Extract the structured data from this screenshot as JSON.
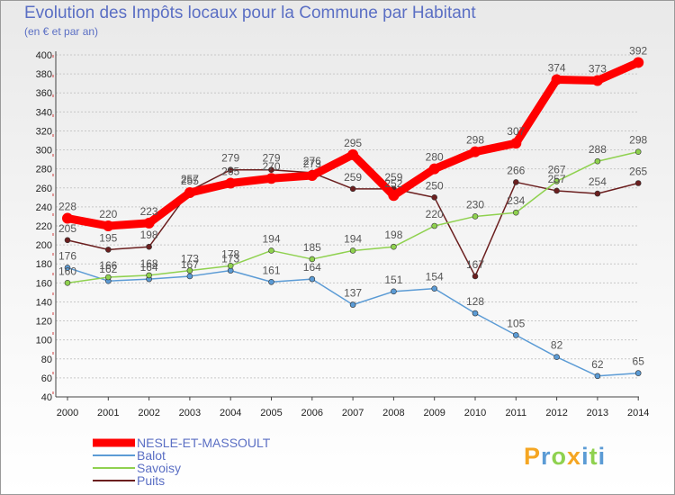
{
  "chart_data": {
    "type": "line",
    "title": "Evolution des Impôts locaux pour la Commune par Habitant",
    "subtitle": "(en € et par an)",
    "x": [
      "2000",
      "2001",
      "2002",
      "2003",
      "2004",
      "2005",
      "2006",
      "2007",
      "2008",
      "2009",
      "2010",
      "2011",
      "2012",
      "2013",
      "2014"
    ],
    "ylim": [
      40,
      400
    ],
    "yticks": [
      40,
      60,
      80,
      100,
      120,
      140,
      160,
      180,
      200,
      220,
      240,
      260,
      280,
      300,
      320,
      340,
      360,
      380,
      400
    ],
    "grid": "horizontal dashed",
    "legend": "bottom-left",
    "series": [
      {
        "name": "NESLE-ET-MASSOULT",
        "color": "#ff0000",
        "values": [
          228,
          220,
          223,
          255,
          265,
          270,
          273,
          295,
          252,
          280,
          298,
          307,
          374,
          373,
          392
        ]
      },
      {
        "name": "Balot",
        "color": "#5b9bd5",
        "values": [
          176,
          162,
          164,
          167,
          173,
          161,
          164,
          137,
          151,
          154,
          128,
          105,
          82,
          62,
          65
        ]
      },
      {
        "name": "Savoisy",
        "color": "#8fd14f",
        "values": [
          160,
          166,
          168,
          173,
          178,
          194,
          185,
          194,
          198,
          220,
          230,
          234,
          267,
          288,
          298
        ]
      },
      {
        "name": "Puits",
        "color": "#6b1f1f",
        "values": [
          205,
          195,
          198,
          257,
          279,
          279,
          276,
          259,
          259,
          250,
          167,
          266,
          257,
          254,
          265
        ]
      }
    ]
  },
  "brand": {
    "letters": [
      "P",
      "r",
      "o",
      "x",
      "i",
      "t",
      "i"
    ],
    "colors": [
      "#f5a623",
      "#5b9bd5",
      "#8fd14f",
      "#f5a623",
      "#5b9bd5",
      "#8fd14f",
      "#5b9bd5"
    ]
  }
}
